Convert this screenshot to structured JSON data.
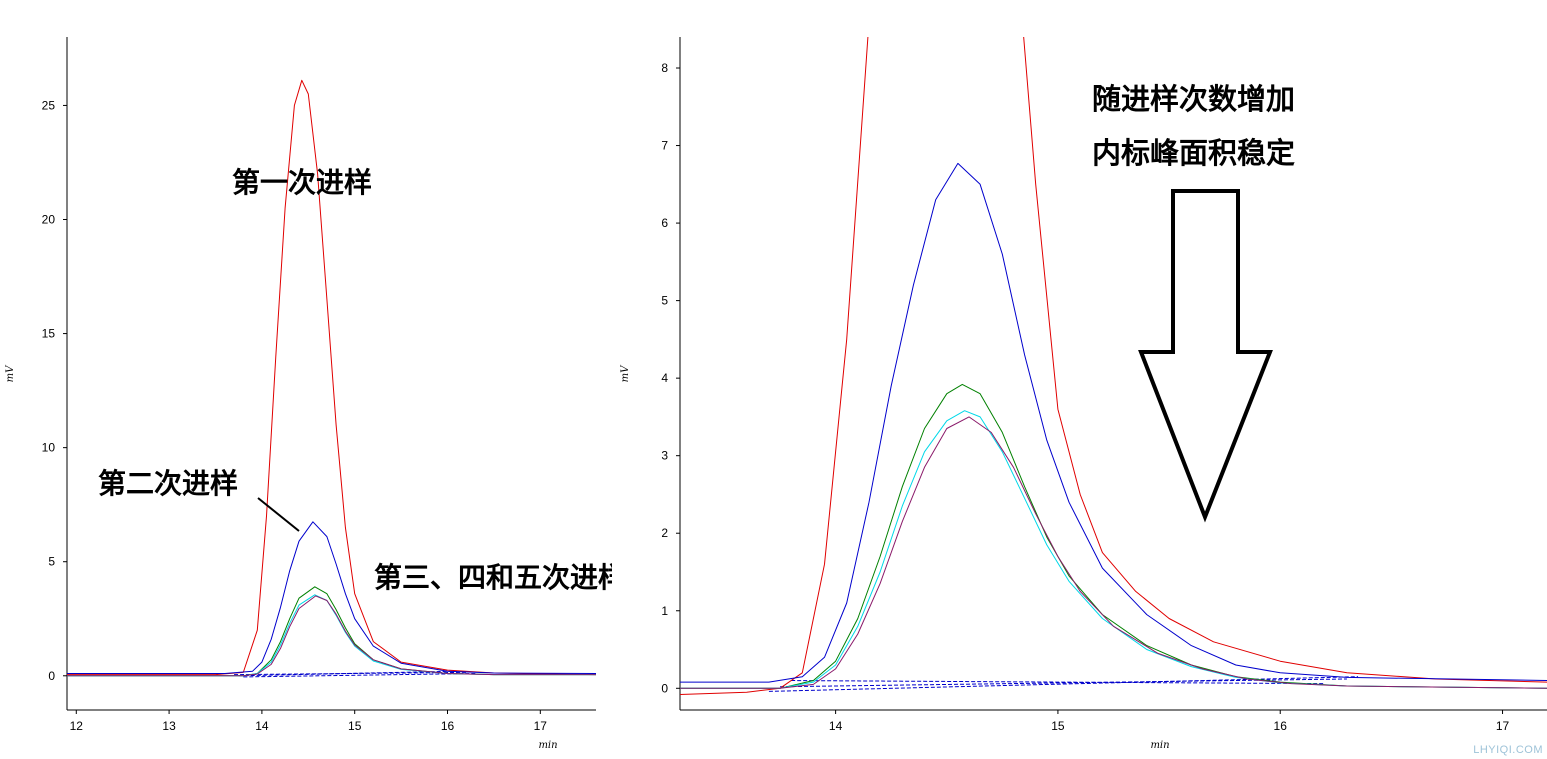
{
  "chart_data": [
    {
      "type": "line",
      "title": "",
      "xlabel": "min",
      "ylabel": "mV",
      "xlim": [
        11.9,
        17.6
      ],
      "ylim": [
        -1.5,
        28
      ],
      "x_ticks": [
        12,
        13,
        14,
        15,
        16,
        17
      ],
      "y_ticks": [
        0,
        5,
        10,
        15,
        20,
        25
      ],
      "grid": false,
      "series": [
        {
          "color": "#e00000",
          "x": [
            11.9,
            13.5,
            13.8,
            13.95,
            14.05,
            14.15,
            14.25,
            14.35,
            14.43,
            14.5,
            14.6,
            14.7,
            14.8,
            14.9,
            15.0,
            15.2,
            15.5,
            16.0,
            16.5,
            17.6
          ],
          "y": [
            0.05,
            0.05,
            0.15,
            2.0,
            7.0,
            14.0,
            20.5,
            25.0,
            26.1,
            25.5,
            22.0,
            16.5,
            11.0,
            6.5,
            3.6,
            1.5,
            0.6,
            0.25,
            0.12,
            0.05
          ]
        },
        {
          "color": "#0000cc",
          "x": [
            11.9,
            13.6,
            13.9,
            14.0,
            14.1,
            14.2,
            14.3,
            14.4,
            14.55,
            14.7,
            14.8,
            14.9,
            15.0,
            15.2,
            15.5,
            16.0,
            16.5,
            17.6
          ],
          "y": [
            0.1,
            0.1,
            0.2,
            0.6,
            1.6,
            3.0,
            4.6,
            5.9,
            6.75,
            6.1,
            4.9,
            3.6,
            2.5,
            1.3,
            0.55,
            0.2,
            0.12,
            0.1
          ]
        },
        {
          "color": "#008000",
          "x": [
            11.9,
            13.8,
            13.95,
            14.1,
            14.2,
            14.3,
            14.4,
            14.57,
            14.7,
            14.8,
            14.9,
            15.0,
            15.2,
            15.5,
            16.0,
            16.5,
            17.6
          ],
          "y": [
            0.0,
            0.0,
            0.1,
            0.7,
            1.5,
            2.5,
            3.4,
            3.9,
            3.6,
            2.9,
            2.1,
            1.4,
            0.7,
            0.3,
            0.1,
            0.05,
            0.05
          ]
        },
        {
          "color": "#00d8e8",
          "x": [
            11.9,
            13.8,
            13.95,
            14.1,
            14.2,
            14.3,
            14.4,
            14.57,
            14.7,
            14.8,
            14.9,
            15.0,
            15.2,
            15.5,
            16.0,
            16.5,
            17.6
          ],
          "y": [
            0.0,
            0.0,
            0.1,
            0.6,
            1.35,
            2.3,
            3.1,
            3.55,
            3.3,
            2.65,
            1.9,
            1.3,
            0.65,
            0.28,
            0.1,
            0.05,
            0.05
          ]
        },
        {
          "color": "#8a1a6a",
          "x": [
            11.9,
            13.8,
            13.95,
            14.1,
            14.2,
            14.3,
            14.4,
            14.58,
            14.7,
            14.8,
            14.9,
            15.0,
            15.2,
            15.5,
            16.0,
            16.5,
            17.6
          ],
          "y": [
            0.0,
            0.0,
            0.08,
            0.5,
            1.2,
            2.15,
            2.95,
            3.5,
            3.3,
            2.7,
            1.95,
            1.35,
            0.7,
            0.3,
            0.1,
            0.05,
            0.05
          ]
        }
      ],
      "annotations": [
        "第一次进样",
        "第二次进样",
        "第三、四和五次进样"
      ]
    },
    {
      "type": "line",
      "title": "",
      "xlabel": "min",
      "ylabel": "mV",
      "xlim": [
        13.3,
        17.2
      ],
      "ylim": [
        -0.28,
        8.4
      ],
      "x_ticks": [
        14,
        15,
        16,
        17
      ],
      "y_ticks": [
        0,
        1,
        2,
        3,
        4,
        5,
        6,
        7,
        8
      ],
      "grid": false,
      "series": [
        {
          "color": "#e00000",
          "x": [
            13.3,
            13.6,
            13.75,
            13.85,
            13.95,
            14.05,
            14.15
          ],
          "y": [
            -0.08,
            -0.05,
            0.0,
            0.2,
            1.6,
            4.5,
            8.6
          ]
        },
        {
          "color": "#e00000",
          "x": [
            14.84,
            14.9,
            15.0,
            15.1,
            15.2,
            15.35,
            15.5,
            15.7,
            16.0,
            16.3,
            16.7,
            17.2
          ],
          "y": [
            8.6,
            6.5,
            3.6,
            2.5,
            1.75,
            1.25,
            0.9,
            0.6,
            0.35,
            0.2,
            0.12,
            0.08
          ]
        },
        {
          "color": "#0000cc",
          "x": [
            13.3,
            13.7,
            13.85,
            13.95,
            14.05,
            14.15,
            14.25,
            14.35,
            14.45,
            14.55,
            14.65,
            14.75,
            14.85,
            14.95,
            15.05,
            15.2,
            15.4,
            15.6,
            15.8,
            16.0,
            16.3,
            17.2
          ],
          "y": [
            0.08,
            0.08,
            0.15,
            0.4,
            1.1,
            2.4,
            3.9,
            5.2,
            6.3,
            6.77,
            6.5,
            5.6,
            4.3,
            3.2,
            2.4,
            1.55,
            0.95,
            0.55,
            0.3,
            0.2,
            0.14,
            0.1
          ]
        },
        {
          "color": "#008000",
          "x": [
            13.3,
            13.75,
            13.9,
            14.0,
            14.1,
            14.2,
            14.3,
            14.4,
            14.5,
            14.57,
            14.65,
            14.75,
            14.85,
            14.95,
            15.05,
            15.2,
            15.4,
            15.6,
            15.8,
            16.0,
            16.3,
            17.2
          ],
          "y": [
            0.0,
            0.0,
            0.1,
            0.35,
            0.9,
            1.7,
            2.6,
            3.35,
            3.8,
            3.92,
            3.8,
            3.3,
            2.6,
            1.95,
            1.45,
            0.95,
            0.55,
            0.3,
            0.15,
            0.08,
            0.03,
            0.0
          ]
        },
        {
          "color": "#00d8e8",
          "x": [
            13.3,
            13.75,
            13.9,
            14.0,
            14.1,
            14.2,
            14.3,
            14.4,
            14.5,
            14.58,
            14.65,
            14.75,
            14.85,
            14.95,
            15.05,
            15.2,
            15.4,
            15.6,
            15.8,
            16.0,
            16.3,
            17.2
          ],
          "y": [
            0.0,
            0.0,
            0.08,
            0.3,
            0.8,
            1.5,
            2.35,
            3.05,
            3.45,
            3.58,
            3.5,
            3.05,
            2.45,
            1.85,
            1.38,
            0.9,
            0.5,
            0.28,
            0.14,
            0.07,
            0.03,
            0.0
          ]
        },
        {
          "color": "#8a1a6a",
          "x": [
            13.3,
            13.75,
            13.9,
            14.0,
            14.1,
            14.2,
            14.3,
            14.4,
            14.5,
            14.6,
            14.7,
            14.8,
            14.9,
            15.0,
            15.1,
            15.25,
            15.45,
            15.65,
            15.85,
            16.05,
            16.3,
            17.2
          ],
          "y": [
            0.0,
            0.0,
            0.05,
            0.25,
            0.7,
            1.35,
            2.15,
            2.85,
            3.35,
            3.5,
            3.3,
            2.85,
            2.25,
            1.7,
            1.25,
            0.8,
            0.45,
            0.25,
            0.12,
            0.06,
            0.03,
            0.0
          ]
        }
      ],
      "annotations": [
        "随进样次数增加",
        "内标峰面积稳定"
      ]
    }
  ],
  "watermark": "LHYIQI.COM"
}
